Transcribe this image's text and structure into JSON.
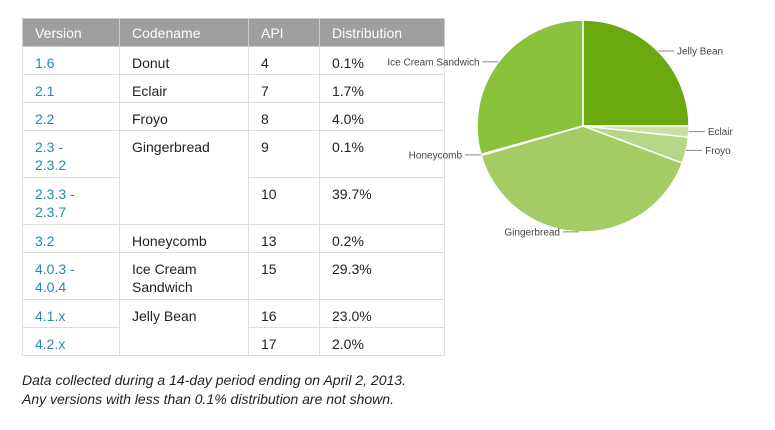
{
  "table": {
    "headers": [
      "Version",
      "Codename",
      "API",
      "Distribution"
    ],
    "rows": [
      {
        "version": "1.6",
        "codename": "Donut",
        "api": "4",
        "distribution": "0.1%"
      },
      {
        "version": "2.1",
        "codename": "Eclair",
        "api": "7",
        "distribution": "1.7%"
      },
      {
        "version": "2.2",
        "codename": "Froyo",
        "api": "8",
        "distribution": "4.0%"
      },
      {
        "version": "2.3 -\n2.3.2",
        "codename": "Gingerbread",
        "api": "9",
        "distribution": "0.1%"
      },
      {
        "version": "2.3.3 -\n2.3.7",
        "codename": "",
        "api": "10",
        "distribution": "39.7%"
      },
      {
        "version": "3.2",
        "codename": "Honeycomb",
        "api": "13",
        "distribution": "0.2%"
      },
      {
        "version": "4.0.3 -\n4.0.4",
        "codename": "Ice Cream\nSandwich",
        "api": "15",
        "distribution": "29.3%"
      },
      {
        "version": "4.1.x",
        "codename": "Jelly Bean",
        "api": "16",
        "distribution": "23.0%"
      },
      {
        "version": "4.2.x",
        "codename": "",
        "api": "17",
        "distribution": "2.0%"
      }
    ]
  },
  "note": {
    "line1": "Data collected during a 14-day period ending on April 2, 2013.",
    "line2": "Any versions with less than 0.1% distribution are not shown."
  },
  "chart_data": {
    "type": "pie",
    "start_angle_deg": 90,
    "direction": "clockwise",
    "slices": [
      {
        "label": "Jelly Bean",
        "value": 25.0,
        "color": "#6aaa0e"
      },
      {
        "label": "Eclair",
        "value": 1.7,
        "color": "#c8e0a0"
      },
      {
        "label": "Froyo",
        "value": 4.0,
        "color": "#b4d888"
      },
      {
        "label": "Gingerbread",
        "value": 39.8,
        "color": "#a3cc64"
      },
      {
        "label": "Honeycomb",
        "value": 0.2,
        "color": "#96c24e"
      },
      {
        "label": "Ice Cream Sandwich",
        "value": 29.3,
        "color": "#8ac23c"
      }
    ],
    "colors": {
      "stroke": "#ffffff",
      "leader": "#888888"
    }
  }
}
